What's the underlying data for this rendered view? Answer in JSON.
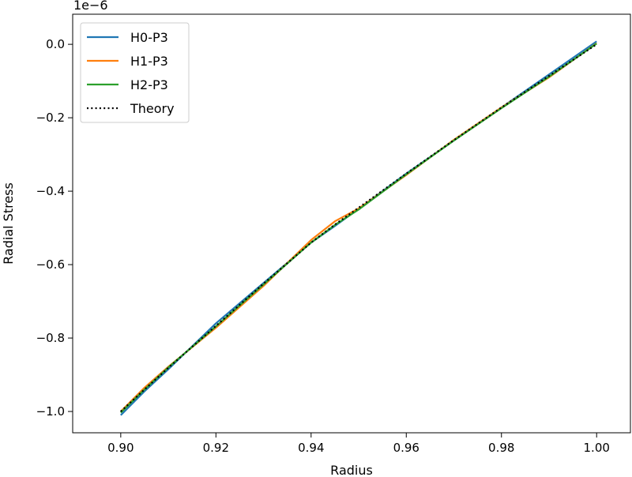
{
  "chart_data": {
    "type": "line",
    "title": "",
    "xlabel": "Radius",
    "ylabel": "Radial Stress",
    "offset_text": "1e−6",
    "xlim": [
      0.8899,
      1.0071
    ],
    "ylim": [
      -1.058,
      0.082
    ],
    "x_ticks": [
      0.9,
      0.92,
      0.94,
      0.96,
      0.98,
      1.0
    ],
    "x_tick_labels": [
      "0.90",
      "0.92",
      "0.94",
      "0.96",
      "0.98",
      "1.00"
    ],
    "y_ticks": [
      0.0,
      -0.2,
      -0.4,
      -0.6,
      -0.8,
      -1.0
    ],
    "y_tick_labels": [
      "0.0",
      "−0.2",
      "−0.4",
      "−0.6",
      "−0.8",
      "−1.0"
    ],
    "grid": false,
    "legend_position": "top-left",
    "x": [
      0.9,
      0.905,
      0.91,
      0.92,
      0.93,
      0.94,
      0.945,
      0.95,
      0.96,
      0.97,
      0.98,
      0.99,
      1.0
    ],
    "series": [
      {
        "name": "H0-P3",
        "color": "#1f77b4",
        "style": "solid",
        "values": [
          -1.01,
          -0.945,
          -0.885,
          -0.76,
          -0.65,
          -0.54,
          -0.495,
          -0.448,
          -0.352,
          -0.262,
          -0.172,
          -0.082,
          0.008
        ]
      },
      {
        "name": "H1-P3",
        "color": "#ff7f0e",
        "style": "solid",
        "values": [
          -1.0,
          -0.935,
          -0.878,
          -0.772,
          -0.658,
          -0.533,
          -0.482,
          -0.447,
          -0.356,
          -0.26,
          -0.172,
          -0.09,
          0.003
        ]
      },
      {
        "name": "H2-P3",
        "color": "#2ca02c",
        "style": "solid",
        "values": [
          -1.003,
          -0.94,
          -0.88,
          -0.768,
          -0.654,
          -0.54,
          -0.492,
          -0.45,
          -0.354,
          -0.262,
          -0.174,
          -0.088,
          0.002
        ]
      },
      {
        "name": "Theory",
        "color": "#000000",
        "style": "dotted",
        "values": [
          -1.0,
          -0.94,
          -0.881,
          -0.767,
          -0.652,
          -0.54,
          -0.491,
          -0.445,
          -0.352,
          -0.261,
          -0.172,
          -0.086,
          0.0
        ]
      }
    ]
  }
}
